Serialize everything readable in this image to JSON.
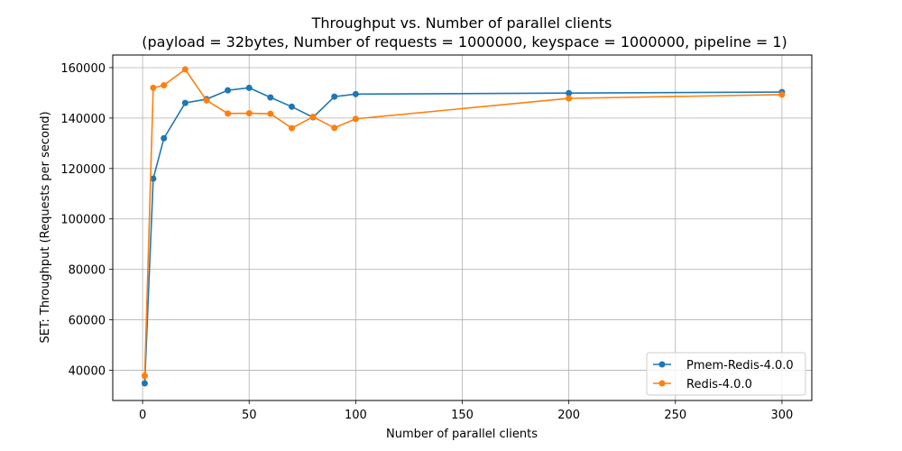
{
  "chart_data": {
    "type": "line",
    "title": "Throughput vs. Number of parallel clients",
    "subtitle": "(payload = 32bytes, Number of requests = 1000000, keyspace = 1000000, pipeline = 1)",
    "xlabel": "Number of parallel clients",
    "ylabel": "SET: Throughput (Requests per second)",
    "xlim": [
      -14,
      314
    ],
    "ylim": [
      28000,
      165000
    ],
    "xticks": [
      0,
      50,
      100,
      150,
      200,
      250,
      300
    ],
    "xtick_labels": [
      "0",
      "50",
      "100",
      "150",
      "200",
      "250",
      "300"
    ],
    "yticks": [
      40000,
      60000,
      80000,
      100000,
      120000,
      140000,
      160000
    ],
    "ytick_labels": [
      "40000",
      "60000",
      "80000",
      "100000",
      "120000",
      "140000",
      "160000"
    ],
    "grid": true,
    "legend_position": "bottom-right",
    "series": [
      {
        "name": "Pmem-Redis-4.0.0",
        "color": "#1f77b4",
        "points": [
          [
            1,
            34800
          ],
          [
            5,
            116000
          ],
          [
            10,
            132000
          ],
          [
            20,
            146000
          ],
          [
            30,
            147500
          ],
          [
            40,
            151000
          ],
          [
            50,
            152000
          ],
          [
            60,
            148200
          ],
          [
            70,
            144500
          ],
          [
            80,
            140300
          ],
          [
            90,
            148500
          ],
          [
            100,
            149500
          ],
          [
            200,
            149900
          ],
          [
            300,
            150300
          ]
        ]
      },
      {
        "name": "Redis-4.0.0",
        "color": "#ff7f0e",
        "points": [
          [
            1,
            37800
          ],
          [
            5,
            152000
          ],
          [
            10,
            153000
          ],
          [
            20,
            159300
          ],
          [
            30,
            147000
          ],
          [
            40,
            141800
          ],
          [
            50,
            141900
          ],
          [
            60,
            141700
          ],
          [
            70,
            136000
          ],
          [
            80,
            140500
          ],
          [
            90,
            136100
          ],
          [
            100,
            139700
          ],
          [
            200,
            147800
          ],
          [
            300,
            149300
          ]
        ]
      }
    ]
  }
}
